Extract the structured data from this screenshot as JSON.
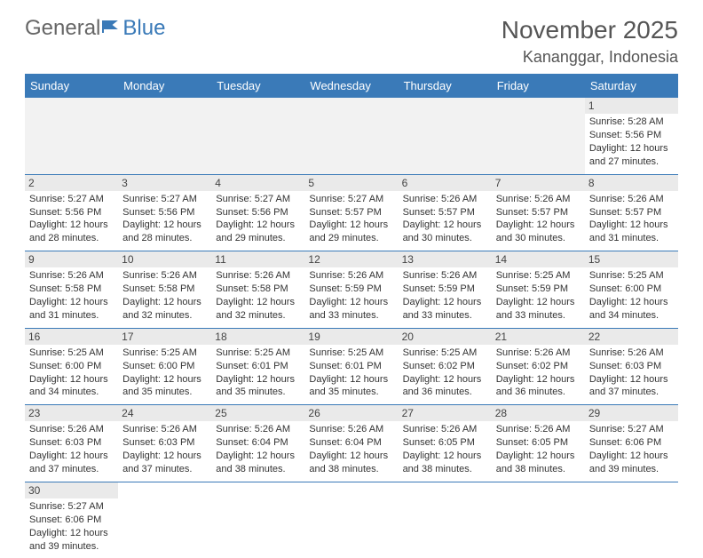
{
  "logo": {
    "part1": "General",
    "part2": "Blue",
    "icon_color": "#3a7ab8"
  },
  "title": "November 2025",
  "location": "Kananggar, Indonesia",
  "colors": {
    "header_bg": "#3a7ab8",
    "daynum_bg": "#eaeaea",
    "border": "#3a7ab8",
    "empty_bg": "#f2f2f2"
  },
  "daynames": [
    "Sunday",
    "Monday",
    "Tuesday",
    "Wednesday",
    "Thursday",
    "Friday",
    "Saturday"
  ],
  "weeks": [
    [
      null,
      null,
      null,
      null,
      null,
      null,
      {
        "n": "1",
        "sr": "Sunrise: 5:28 AM",
        "ss": "Sunset: 5:56 PM",
        "dl": "Daylight: 12 hours and 27 minutes."
      }
    ],
    [
      {
        "n": "2",
        "sr": "Sunrise: 5:27 AM",
        "ss": "Sunset: 5:56 PM",
        "dl": "Daylight: 12 hours and 28 minutes."
      },
      {
        "n": "3",
        "sr": "Sunrise: 5:27 AM",
        "ss": "Sunset: 5:56 PM",
        "dl": "Daylight: 12 hours and 28 minutes."
      },
      {
        "n": "4",
        "sr": "Sunrise: 5:27 AM",
        "ss": "Sunset: 5:56 PM",
        "dl": "Daylight: 12 hours and 29 minutes."
      },
      {
        "n": "5",
        "sr": "Sunrise: 5:27 AM",
        "ss": "Sunset: 5:57 PM",
        "dl": "Daylight: 12 hours and 29 minutes."
      },
      {
        "n": "6",
        "sr": "Sunrise: 5:26 AM",
        "ss": "Sunset: 5:57 PM",
        "dl": "Daylight: 12 hours and 30 minutes."
      },
      {
        "n": "7",
        "sr": "Sunrise: 5:26 AM",
        "ss": "Sunset: 5:57 PM",
        "dl": "Daylight: 12 hours and 30 minutes."
      },
      {
        "n": "8",
        "sr": "Sunrise: 5:26 AM",
        "ss": "Sunset: 5:57 PM",
        "dl": "Daylight: 12 hours and 31 minutes."
      }
    ],
    [
      {
        "n": "9",
        "sr": "Sunrise: 5:26 AM",
        "ss": "Sunset: 5:58 PM",
        "dl": "Daylight: 12 hours and 31 minutes."
      },
      {
        "n": "10",
        "sr": "Sunrise: 5:26 AM",
        "ss": "Sunset: 5:58 PM",
        "dl": "Daylight: 12 hours and 32 minutes."
      },
      {
        "n": "11",
        "sr": "Sunrise: 5:26 AM",
        "ss": "Sunset: 5:58 PM",
        "dl": "Daylight: 12 hours and 32 minutes."
      },
      {
        "n": "12",
        "sr": "Sunrise: 5:26 AM",
        "ss": "Sunset: 5:59 PM",
        "dl": "Daylight: 12 hours and 33 minutes."
      },
      {
        "n": "13",
        "sr": "Sunrise: 5:26 AM",
        "ss": "Sunset: 5:59 PM",
        "dl": "Daylight: 12 hours and 33 minutes."
      },
      {
        "n": "14",
        "sr": "Sunrise: 5:25 AM",
        "ss": "Sunset: 5:59 PM",
        "dl": "Daylight: 12 hours and 33 minutes."
      },
      {
        "n": "15",
        "sr": "Sunrise: 5:25 AM",
        "ss": "Sunset: 6:00 PM",
        "dl": "Daylight: 12 hours and 34 minutes."
      }
    ],
    [
      {
        "n": "16",
        "sr": "Sunrise: 5:25 AM",
        "ss": "Sunset: 6:00 PM",
        "dl": "Daylight: 12 hours and 34 minutes."
      },
      {
        "n": "17",
        "sr": "Sunrise: 5:25 AM",
        "ss": "Sunset: 6:00 PM",
        "dl": "Daylight: 12 hours and 35 minutes."
      },
      {
        "n": "18",
        "sr": "Sunrise: 5:25 AM",
        "ss": "Sunset: 6:01 PM",
        "dl": "Daylight: 12 hours and 35 minutes."
      },
      {
        "n": "19",
        "sr": "Sunrise: 5:25 AM",
        "ss": "Sunset: 6:01 PM",
        "dl": "Daylight: 12 hours and 35 minutes."
      },
      {
        "n": "20",
        "sr": "Sunrise: 5:25 AM",
        "ss": "Sunset: 6:02 PM",
        "dl": "Daylight: 12 hours and 36 minutes."
      },
      {
        "n": "21",
        "sr": "Sunrise: 5:26 AM",
        "ss": "Sunset: 6:02 PM",
        "dl": "Daylight: 12 hours and 36 minutes."
      },
      {
        "n": "22",
        "sr": "Sunrise: 5:26 AM",
        "ss": "Sunset: 6:03 PM",
        "dl": "Daylight: 12 hours and 37 minutes."
      }
    ],
    [
      {
        "n": "23",
        "sr": "Sunrise: 5:26 AM",
        "ss": "Sunset: 6:03 PM",
        "dl": "Daylight: 12 hours and 37 minutes."
      },
      {
        "n": "24",
        "sr": "Sunrise: 5:26 AM",
        "ss": "Sunset: 6:03 PM",
        "dl": "Daylight: 12 hours and 37 minutes."
      },
      {
        "n": "25",
        "sr": "Sunrise: 5:26 AM",
        "ss": "Sunset: 6:04 PM",
        "dl": "Daylight: 12 hours and 38 minutes."
      },
      {
        "n": "26",
        "sr": "Sunrise: 5:26 AM",
        "ss": "Sunset: 6:04 PM",
        "dl": "Daylight: 12 hours and 38 minutes."
      },
      {
        "n": "27",
        "sr": "Sunrise: 5:26 AM",
        "ss": "Sunset: 6:05 PM",
        "dl": "Daylight: 12 hours and 38 minutes."
      },
      {
        "n": "28",
        "sr": "Sunrise: 5:26 AM",
        "ss": "Sunset: 6:05 PM",
        "dl": "Daylight: 12 hours and 38 minutes."
      },
      {
        "n": "29",
        "sr": "Sunrise: 5:27 AM",
        "ss": "Sunset: 6:06 PM",
        "dl": "Daylight: 12 hours and 39 minutes."
      }
    ],
    [
      {
        "n": "30",
        "sr": "Sunrise: 5:27 AM",
        "ss": "Sunset: 6:06 PM",
        "dl": "Daylight: 12 hours and 39 minutes."
      },
      null,
      null,
      null,
      null,
      null,
      null
    ]
  ]
}
